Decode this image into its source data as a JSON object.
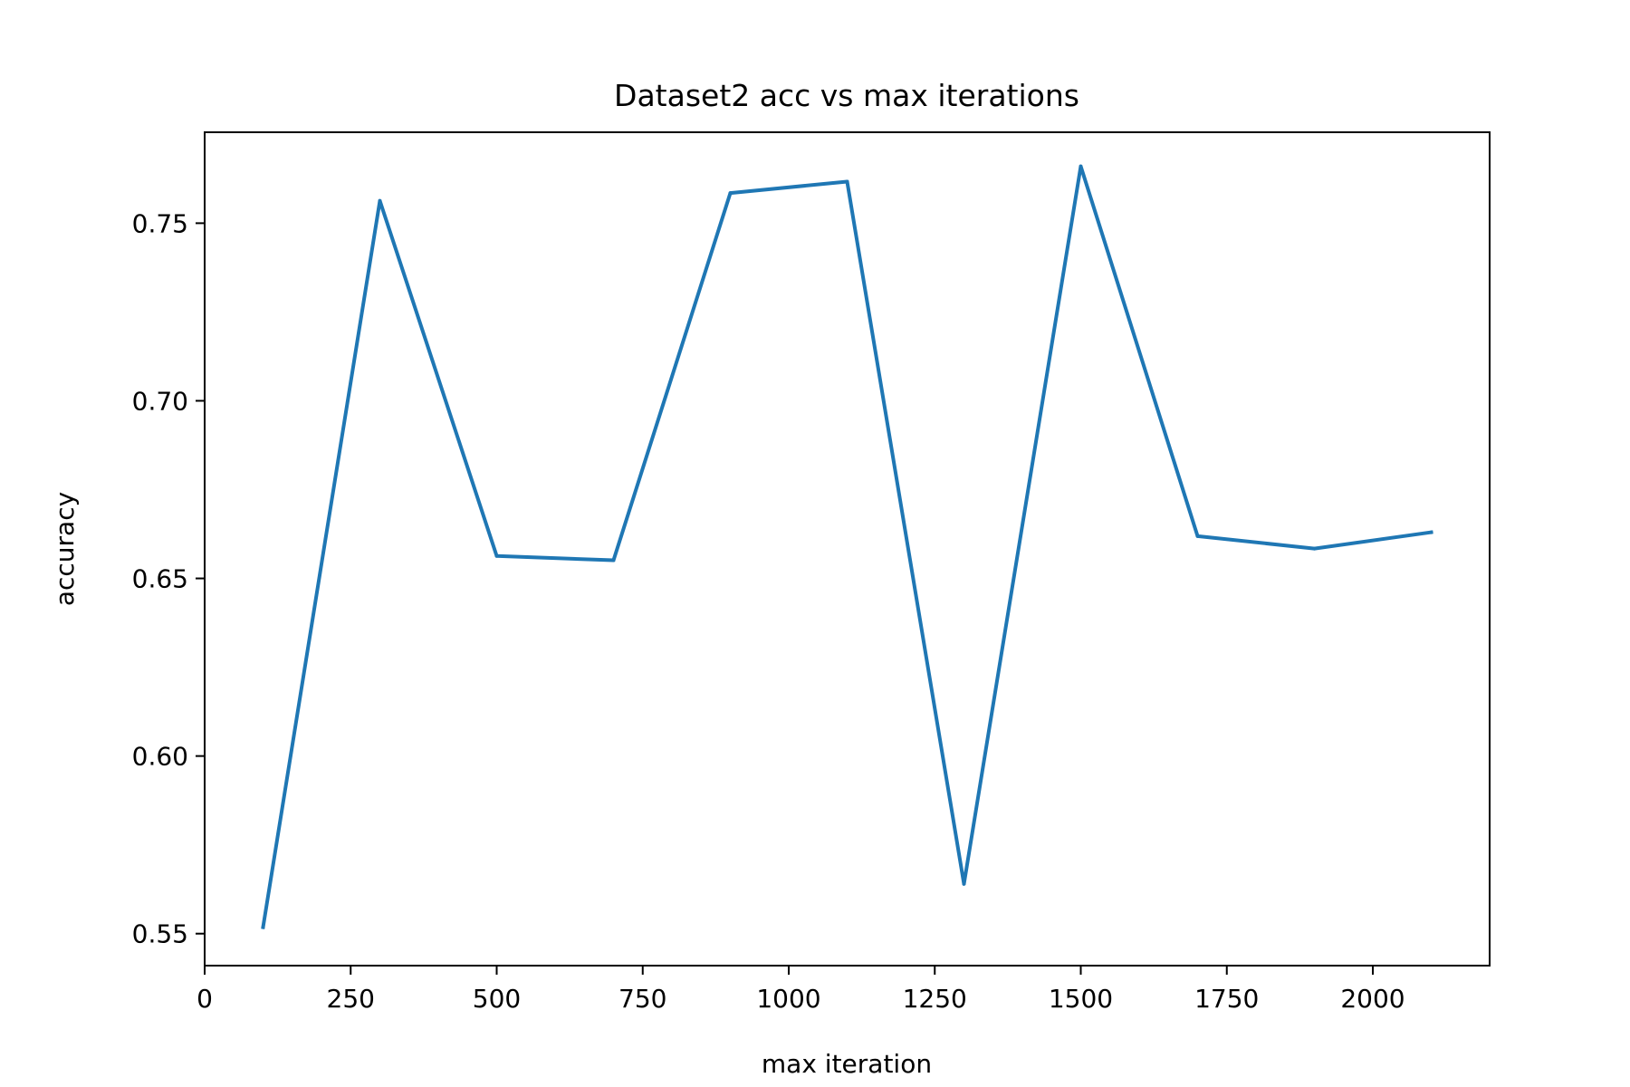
{
  "chart_data": {
    "type": "line",
    "title": "Dataset2 acc vs max iterations",
    "xlabel": "max iteration",
    "ylabel": "accuracy",
    "xlim": [
      0,
      2200
    ],
    "ylim": [
      0.541,
      0.7756
    ],
    "x_ticks": [
      {
        "value": 0,
        "label": "0"
      },
      {
        "value": 250,
        "label": "250"
      },
      {
        "value": 500,
        "label": "500"
      },
      {
        "value": 750,
        "label": "750"
      },
      {
        "value": 1000,
        "label": "1000"
      },
      {
        "value": 1250,
        "label": "1250"
      },
      {
        "value": 1500,
        "label": "1500"
      },
      {
        "value": 1750,
        "label": "1750"
      },
      {
        "value": 2000,
        "label": "2000"
      }
    ],
    "y_ticks": [
      {
        "value": 0.55,
        "label": "0.55"
      },
      {
        "value": 0.6,
        "label": "0.60"
      },
      {
        "value": 0.65,
        "label": "0.65"
      },
      {
        "value": 0.7,
        "label": "0.70"
      },
      {
        "value": 0.75,
        "label": "0.75"
      }
    ],
    "grid": false,
    "legend": "none",
    "series": [
      {
        "color": "#1f77b4",
        "x": [
          100,
          300,
          500,
          700,
          900,
          1100,
          1300,
          1500,
          1700,
          1900,
          2100
        ],
        "y": [
          0.5518,
          0.7563,
          0.6563,
          0.6551,
          0.7585,
          0.7617,
          0.564,
          0.766,
          0.6619,
          0.6584,
          0.663
        ]
      }
    ]
  }
}
